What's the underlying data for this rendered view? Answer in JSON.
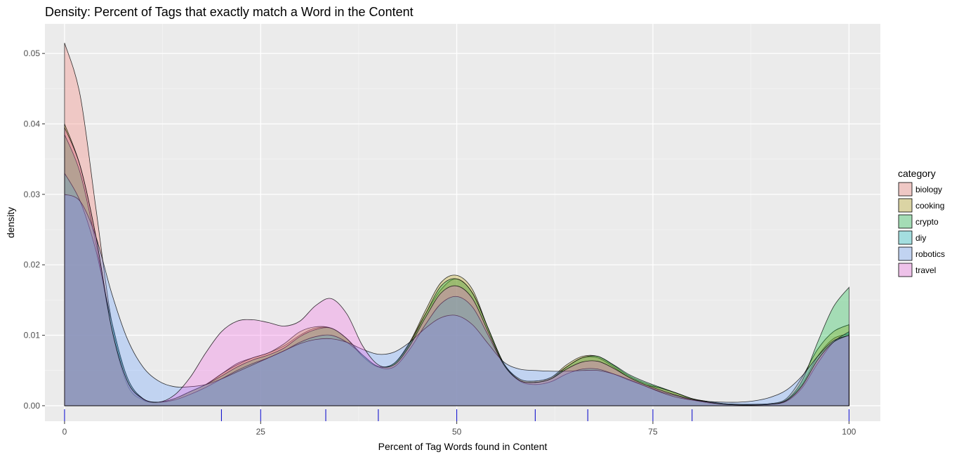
{
  "chart_data": {
    "type": "area",
    "title": "Density: Percent of Tags that exactly match a Word in the Content",
    "xlabel": "Percent of Tag Words found in Content",
    "ylabel": "density",
    "xlim": [
      -2.5,
      104
    ],
    "ylim": [
      -0.0022,
      0.0542
    ],
    "x_ticks": [
      0,
      25,
      50,
      75,
      100
    ],
    "x_tick_labels": [
      "0",
      "25",
      "50",
      "75",
      "100"
    ],
    "y_ticks": [
      0,
      0.01,
      0.02,
      0.03,
      0.04,
      0.05
    ],
    "y_tick_labels": [
      "0.00",
      "0.01",
      "0.02",
      "0.03",
      "0.04",
      "0.05"
    ],
    "y_minor_ticks": [
      0.005,
      0.015,
      0.025,
      0.035,
      0.045
    ],
    "x_minor_ticks": [
      12.5,
      37.5,
      62.5,
      87.5
    ],
    "grid": true,
    "legend_title": "category",
    "legend_position": "right",
    "fill_opacity": 0.3,
    "rug_x": [
      0,
      20,
      25,
      33.3,
      40,
      50,
      60,
      66.7,
      75,
      80,
      100
    ],
    "rug_color": "#0000cc",
    "x": [
      0,
      2,
      4,
      6,
      8,
      10,
      12,
      14,
      16,
      18,
      20,
      22,
      24,
      26,
      28,
      30,
      32,
      34,
      36,
      38,
      40,
      42,
      44,
      46,
      48,
      50,
      52,
      54,
      56,
      58,
      60,
      62,
      64,
      66,
      68,
      70,
      72,
      74,
      76,
      78,
      80,
      82,
      84,
      86,
      88,
      90,
      92,
      94,
      96,
      98,
      100
    ],
    "series": [
      {
        "name": "biology",
        "color": "#F8766D",
        "values": [
          0.0515,
          0.044,
          0.028,
          0.012,
          0.004,
          0.001,
          0.0005,
          0.001,
          0.002,
          0.003,
          0.0045,
          0.006,
          0.0068,
          0.0075,
          0.0085,
          0.01,
          0.011,
          0.011,
          0.0095,
          0.007,
          0.0055,
          0.006,
          0.009,
          0.013,
          0.0165,
          0.018,
          0.016,
          0.011,
          0.006,
          0.0038,
          0.0035,
          0.004,
          0.0055,
          0.0068,
          0.0068,
          0.0055,
          0.004,
          0.003,
          0.0025,
          0.0018,
          0.001,
          0.0006,
          0.0003,
          0.0002,
          0.0002,
          0.0003,
          0.0008,
          0.003,
          0.007,
          0.0095,
          0.0102
        ]
      },
      {
        "name": "cooking",
        "color": "#B79F00",
        "values": [
          0.04,
          0.034,
          0.024,
          0.011,
          0.003,
          0.0008,
          0.0005,
          0.001,
          0.002,
          0.003,
          0.0045,
          0.0058,
          0.0068,
          0.0075,
          0.0088,
          0.0105,
          0.0112,
          0.011,
          0.0095,
          0.007,
          0.0055,
          0.006,
          0.009,
          0.0135,
          0.0175,
          0.0185,
          0.0165,
          0.011,
          0.006,
          0.0038,
          0.0035,
          0.004,
          0.0058,
          0.007,
          0.007,
          0.0057,
          0.0042,
          0.0032,
          0.0025,
          0.0018,
          0.001,
          0.0006,
          0.0003,
          0.0002,
          0.0002,
          0.0003,
          0.001,
          0.004,
          0.008,
          0.0105,
          0.0115
        ]
      },
      {
        "name": "crypto",
        "color": "#00BA38",
        "values": [
          0.0385,
          0.033,
          0.023,
          0.011,
          0.0035,
          0.0009,
          0.0005,
          0.001,
          0.002,
          0.003,
          0.0042,
          0.0055,
          0.0065,
          0.0072,
          0.0082,
          0.0098,
          0.0108,
          0.011,
          0.0095,
          0.0072,
          0.0056,
          0.006,
          0.0088,
          0.013,
          0.017,
          0.018,
          0.016,
          0.011,
          0.006,
          0.0036,
          0.0033,
          0.0038,
          0.0055,
          0.0068,
          0.007,
          0.0058,
          0.0044,
          0.0034,
          0.0026,
          0.0018,
          0.001,
          0.0005,
          0.0002,
          0.0001,
          0.0001,
          0.0002,
          0.0008,
          0.0035,
          0.009,
          0.014,
          0.0168
        ]
      },
      {
        "name": "diy",
        "color": "#00BFC4",
        "values": [
          0.033,
          0.029,
          0.022,
          0.012,
          0.004,
          0.001,
          0.0005,
          0.0008,
          0.0016,
          0.0026,
          0.0038,
          0.005,
          0.006,
          0.0068,
          0.0078,
          0.009,
          0.0098,
          0.01,
          0.009,
          0.0072,
          0.0055,
          0.0055,
          0.008,
          0.0115,
          0.0145,
          0.0155,
          0.014,
          0.01,
          0.0058,
          0.0035,
          0.003,
          0.0034,
          0.0045,
          0.0052,
          0.0052,
          0.0045,
          0.0036,
          0.0028,
          0.002,
          0.0014,
          0.0008,
          0.0004,
          0.0002,
          0.0001,
          0.0001,
          0.0002,
          0.0006,
          0.0025,
          0.006,
          0.009,
          0.0105
        ]
      },
      {
        "name": "robotics",
        "color": "#619CFF",
        "values": [
          0.03,
          0.029,
          0.024,
          0.016,
          0.0095,
          0.0055,
          0.0035,
          0.0027,
          0.0027,
          0.003,
          0.0038,
          0.0048,
          0.0058,
          0.0068,
          0.0078,
          0.0088,
          0.0094,
          0.0095,
          0.009,
          0.008,
          0.0073,
          0.0076,
          0.009,
          0.011,
          0.0125,
          0.0128,
          0.0115,
          0.0088,
          0.0062,
          0.0052,
          0.005,
          0.0049,
          0.0049,
          0.005,
          0.005,
          0.0045,
          0.0037,
          0.0028,
          0.0019,
          0.0012,
          0.0008,
          0.0006,
          0.0005,
          0.0005,
          0.0007,
          0.0012,
          0.0022,
          0.0042,
          0.007,
          0.0092,
          0.01
        ]
      },
      {
        "name": "travel",
        "color": "#F564E3",
        "values": [
          0.0395,
          0.034,
          0.024,
          0.011,
          0.0035,
          0.001,
          0.0005,
          0.0015,
          0.004,
          0.0075,
          0.0105,
          0.012,
          0.0122,
          0.0118,
          0.0113,
          0.012,
          0.0142,
          0.0152,
          0.013,
          0.0085,
          0.0058,
          0.0058,
          0.0085,
          0.0125,
          0.016,
          0.017,
          0.0152,
          0.0105,
          0.0058,
          0.0036,
          0.0033,
          0.0038,
          0.0052,
          0.0062,
          0.0063,
          0.0053,
          0.004,
          0.003,
          0.0022,
          0.0015,
          0.0009,
          0.0005,
          0.0002,
          0.0001,
          0.0001,
          0.0002,
          0.0007,
          0.0028,
          0.0065,
          0.009,
          0.01
        ]
      }
    ]
  }
}
